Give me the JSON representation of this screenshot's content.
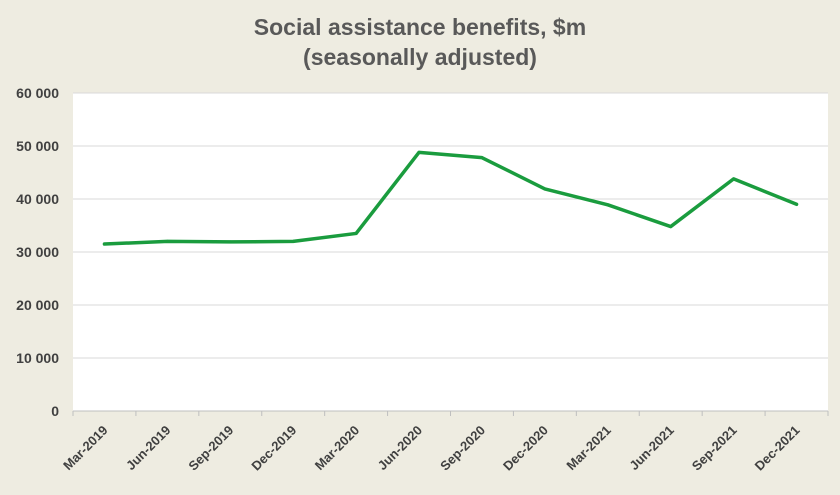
{
  "chart_data": {
    "type": "line",
    "title": "Social assistance benefits, $m",
    "subtitle": "(seasonally adjusted)",
    "categories": [
      "Mar-2019",
      "Jun-2019",
      "Sep-2019",
      "Dec-2019",
      "Mar-2020",
      "Jun-2020",
      "Sep-2020",
      "Dec-2020",
      "Mar-2021",
      "Jun-2021",
      "Sep-2021",
      "Dec-2021"
    ],
    "series": [
      {
        "values": [
          31500,
          32000,
          31900,
          32000,
          33500,
          48800,
          47800,
          41900,
          38900,
          34800,
          43800,
          39000
        ],
        "color": "#1a9c3e"
      }
    ],
    "ylim": [
      0,
      60000
    ],
    "yticks": [
      0,
      10000,
      20000,
      30000,
      40000,
      50000,
      60000
    ],
    "ytick_labels": [
      "0",
      "10 000",
      "20 000",
      "30 000",
      "40 000",
      "50 000",
      "60 000"
    ],
    "grid": true,
    "legend": "none",
    "plot_background": "#ffffff",
    "page_background": "#eeece1"
  }
}
